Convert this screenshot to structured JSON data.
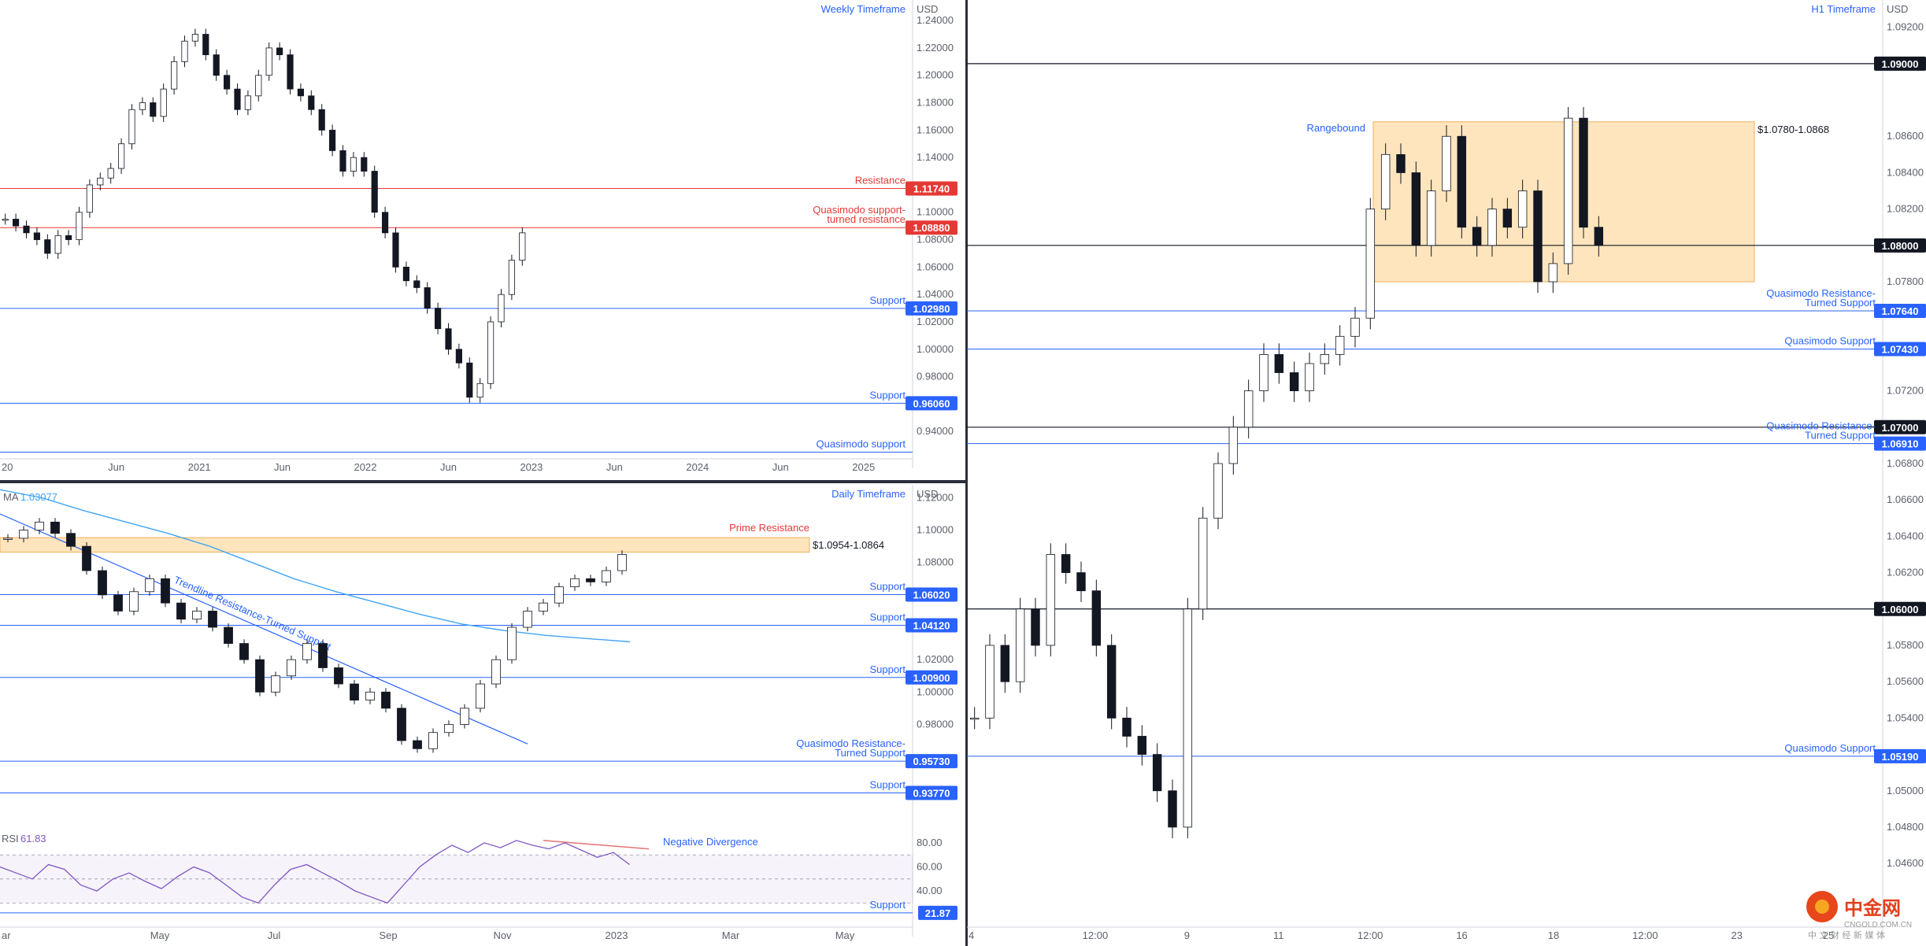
{
  "colors": {
    "blue": "#2962ff",
    "red": "#e53935",
    "zone": "#ffe0b2",
    "zone_border": "#f0b060",
    "rsi": "#7e57c2",
    "ma": "#42a5f5",
    "grid_text": "#5d606b"
  },
  "chart_data": [
    {
      "type": "line",
      "title": "Weekly Timeframe",
      "currency": "USD",
      "ylim": [
        0.92,
        1.255
      ],
      "y_ticks": [
        1.24,
        1.22,
        1.2,
        1.18,
        1.16,
        1.14,
        1.1,
        1.08,
        1.06,
        1.04,
        1.02,
        1.0,
        0.98,
        0.94
      ],
      "x_ticks": [
        "20",
        "Jun",
        "2021",
        "Jun",
        "2022",
        "Jun",
        "2023",
        "Jun",
        "2024",
        "Jun",
        "2025"
      ],
      "levels": [
        {
          "name": "Resistance",
          "value": 1.1174,
          "tag": "1.11740",
          "color": "red"
        },
        {
          "name": "Quasimodo support-turned resistance",
          "value": 1.0888,
          "tag": "1.08880",
          "color": "red"
        },
        {
          "name": "Support",
          "value": 1.0298,
          "tag": "1.02980",
          "color": "blue"
        },
        {
          "name": "Support",
          "value": 0.9606,
          "tag": "0.96060",
          "color": "blue"
        },
        {
          "name": "Quasimodo support",
          "value": 0.9249,
          "tag": "",
          "color": "blue"
        }
      ],
      "series": [
        {
          "values": [
            1.095,
            1.09,
            1.085,
            1.08,
            1.07,
            1.083,
            1.08,
            1.1,
            1.12,
            1.125,
            1.132,
            1.15,
            1.175,
            1.18,
            1.17,
            1.19,
            1.21,
            1.225,
            1.23,
            1.215,
            1.2,
            1.19,
            1.175,
            1.185,
            1.2,
            1.22,
            1.215,
            1.19,
            1.185,
            1.175,
            1.16,
            1.145,
            1.13,
            1.14,
            1.13,
            1.1,
            1.085,
            1.06,
            1.05,
            1.045,
            1.03,
            1.015,
            1.0,
            0.99,
            0.965,
            0.975,
            1.02,
            1.04,
            1.065,
            1.085
          ]
        }
      ]
    },
    {
      "type": "line",
      "title": "Daily Timeframe",
      "currency": "USD",
      "ylim": [
        0.918,
        1.128
      ],
      "y_ticks": [
        1.12,
        1.1,
        1.08,
        1.02,
        1.0,
        0.98
      ],
      "x_ticks": [],
      "zone": {
        "name": "Prime Resistance",
        "range": "$1.0954-1.0864",
        "from": 1.0864,
        "to": 1.0954
      },
      "ma": {
        "name": "MA",
        "value": "1.03077",
        "values": [
          1.125,
          1.12,
          1.112,
          1.105,
          1.098,
          1.09,
          1.08,
          1.07,
          1.062,
          1.055,
          1.048,
          1.042,
          1.038,
          1.035,
          1.033,
          1.031
        ]
      },
      "trendline": {
        "name": "Trendline Resistance-Turned Support",
        "from": 1.11,
        "to": 0.968
      },
      "levels": [
        {
          "name": "Support",
          "value": 1.0602,
          "tag": "1.06020",
          "color": "blue"
        },
        {
          "name": "Support",
          "value": 1.0412,
          "tag": "1.04120",
          "color": "blue"
        },
        {
          "name": "Support",
          "value": 1.009,
          "tag": "1.00900",
          "color": "blue"
        },
        {
          "name": "Quasimodo Resistance-Turned Support",
          "value": 0.9573,
          "tag": "0.95730",
          "color": "blue"
        },
        {
          "name": "Support",
          "value": 0.9377,
          "tag": "0.93770",
          "color": "blue"
        }
      ],
      "series": [
        {
          "values": [
            1.095,
            1.1,
            1.105,
            1.098,
            1.09,
            1.075,
            1.06,
            1.05,
            1.062,
            1.07,
            1.055,
            1.045,
            1.05,
            1.04,
            1.03,
            1.02,
            1.0,
            1.01,
            1.02,
            1.03,
            1.015,
            1.005,
            0.995,
            1.0,
            0.99,
            0.97,
            0.965,
            0.975,
            0.98,
            0.99,
            1.005,
            1.02,
            1.04,
            1.05,
            1.055,
            1.065,
            1.07,
            1.068,
            1.075,
            1.085
          ]
        }
      ]
    },
    {
      "type": "line",
      "title": "RSI",
      "value": "61.83",
      "ylim": [
        10,
        95
      ],
      "y_ticks": [
        80.0,
        60.0,
        40.0
      ],
      "x_ticks": [
        "ar",
        "May",
        "Jul",
        "Sep",
        "Nov",
        "2023",
        "Mar",
        "May"
      ],
      "annotation": "Negative Divergence",
      "levels": [
        {
          "name": "Support",
          "value": 21.87,
          "tag": "21.87",
          "color": "blue"
        }
      ],
      "series": [
        {
          "values": [
            60,
            55,
            50,
            62,
            58,
            45,
            40,
            50,
            55,
            48,
            42,
            52,
            60,
            55,
            45,
            35,
            30,
            45,
            58,
            62,
            55,
            48,
            40,
            35,
            30,
            45,
            60,
            70,
            78,
            72,
            80,
            76,
            82,
            78,
            75,
            80,
            74,
            68,
            72,
            62
          ]
        }
      ]
    },
    {
      "type": "line",
      "title": "H1 Timeframe",
      "currency": "USD",
      "ylim": [
        1.0425,
        1.0935
      ],
      "y_ticks": [
        1.092,
        1.086,
        1.084,
        1.082,
        1.078,
        1.072,
        1.068,
        1.066,
        1.064,
        1.062,
        1.058,
        1.056,
        1.054,
        1.05,
        1.048,
        1.046
      ],
      "x_ticks": [
        "4",
        "12:00",
        "9",
        "11",
        "12:00",
        "16",
        "18",
        "12:00",
        "23",
        "25"
      ],
      "zone": {
        "name": "Rangebound",
        "range": "$1.0780-1.0868",
        "from": 1.078,
        "to": 1.0868
      },
      "levels": [
        {
          "name": "",
          "value": 1.09,
          "tag": "1.09000",
          "color": "black"
        },
        {
          "name": "",
          "value": 1.08,
          "tag": "1.08000",
          "color": "black"
        },
        {
          "name": "Quasimodo Resistance-Turned Support",
          "value": 1.0764,
          "tag": "1.07640",
          "color": "blue"
        },
        {
          "name": "Quasimodo Support",
          "value": 1.0743,
          "tag": "1.07430",
          "color": "blue"
        },
        {
          "name": "",
          "value": 1.07,
          "tag": "1.07000",
          "color": "black"
        },
        {
          "name": "Quasimodo Resistance-Turned Support",
          "value": 1.0691,
          "tag": "1.06910",
          "color": "blue"
        },
        {
          "name": "",
          "value": 1.06,
          "tag": "1.06000",
          "color": "black"
        },
        {
          "name": "Quasimodo Support",
          "value": 1.0519,
          "tag": "1.05190",
          "color": "blue"
        }
      ],
      "series": [
        {
          "values": [
            1.054,
            1.058,
            1.056,
            1.06,
            1.058,
            1.063,
            1.062,
            1.061,
            1.058,
            1.054,
            1.053,
            1.052,
            1.05,
            1.048,
            1.06,
            1.065,
            1.068,
            1.07,
            1.072,
            1.074,
            1.073,
            1.072,
            1.0735,
            1.074,
            1.075,
            1.076,
            1.082,
            1.085,
            1.084,
            1.08,
            1.083,
            1.086,
            1.081,
            1.08,
            1.082,
            1.081,
            1.083,
            1.078,
            1.079,
            1.087,
            1.081,
            1.08
          ]
        }
      ]
    }
  ],
  "watermark": {
    "brand": "中金网",
    "domain": "CNGOLD.COM.CN",
    "tagline": "中 文 财 经 新 媒 体"
  }
}
